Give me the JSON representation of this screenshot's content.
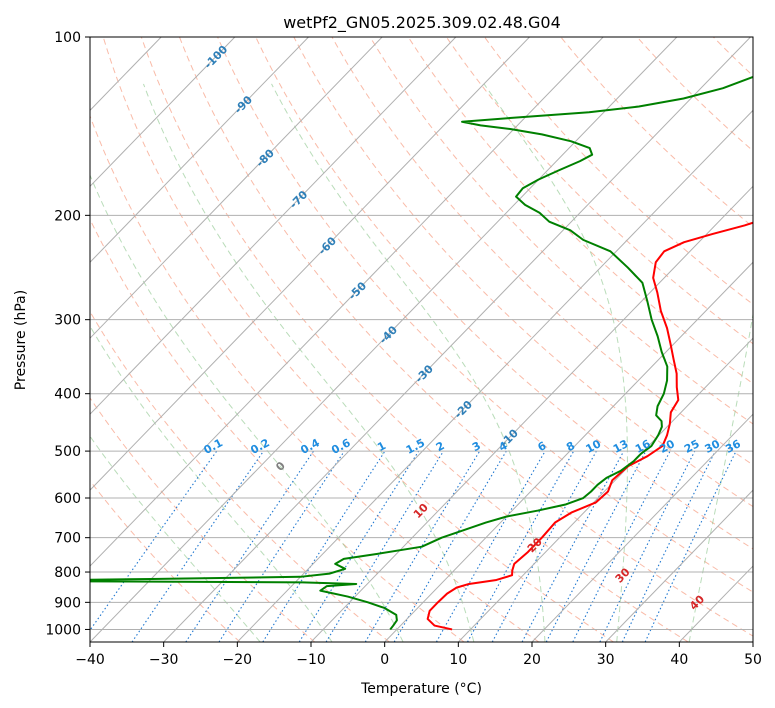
{
  "chart_data": {
    "type": "line",
    "subtype": "skew-t log-p diagram",
    "title": "wetPf2_GN05.2025.309.02.48.G04",
    "xlabel": "Temperature (°C)",
    "ylabel": "Pressure (hPa)",
    "xlim": [
      -40,
      50
    ],
    "ylim_hpa": [
      1050,
      100
    ],
    "x_ticks": [
      -40,
      -30,
      -20,
      -10,
      0,
      10,
      20,
      30,
      40,
      50
    ],
    "x_tick_labels": [
      "−40",
      "−30",
      "−20",
      "−10",
      "0",
      "10",
      "20",
      "30",
      "40",
      "50"
    ],
    "y_ticks": [
      100,
      200,
      300,
      400,
      500,
      600,
      700,
      800,
      900,
      1000
    ],
    "y_tick_labels": [
      "100",
      "200",
      "300",
      "400",
      "500",
      "600",
      "700",
      "800",
      "900",
      "1000"
    ],
    "grid": true,
    "isotherm_spacing_c": 10,
    "dry_adiabat_thetas_k": [
      250,
      260,
      270,
      280,
      290,
      300,
      310,
      320,
      330,
      340,
      350,
      360,
      370,
      380,
      390,
      400,
      420,
      440,
      460
    ],
    "moist_adiabat_start_temps_c": [
      -20,
      -10,
      0,
      10,
      20,
      30,
      40
    ],
    "moist_adiabat_labels": [
      {
        "temp_c": 0,
        "label": "0",
        "color": "#808080",
        "p": 530
      },
      {
        "temp_c": 10,
        "label": "10",
        "color": "#d62728",
        "p": 630
      },
      {
        "temp_c": 20,
        "label": "20",
        "color": "#d62728",
        "p": 720
      },
      {
        "temp_c": 30,
        "label": "30",
        "color": "#d62728",
        "p": 810
      },
      {
        "temp_c": 40,
        "label": "40",
        "color": "#d62728",
        "p": 900
      }
    ],
    "mixing_ratio_lines_gkg": [
      0.1,
      0.2,
      0.4,
      0.6,
      1,
      1.5,
      2,
      3,
      4,
      6,
      8,
      10,
      13,
      16,
      20,
      25,
      30,
      36
    ],
    "mixing_ratio_labels": [
      "0.1",
      "0.2",
      "0.4",
      "0.6",
      "1",
      "1.5",
      "2",
      "3",
      "4",
      "6",
      "8",
      "10",
      "13",
      "16",
      "20",
      "25",
      "30",
      "36"
    ],
    "isotherm_labels": [
      {
        "t": -100,
        "label": "-100",
        "p": 108
      },
      {
        "t": -90,
        "label": "-90",
        "p": 130
      },
      {
        "t": -80,
        "label": "-80",
        "p": 160
      },
      {
        "t": -70,
        "label": "-70",
        "p": 188
      },
      {
        "t": -60,
        "label": "-60",
        "p": 225
      },
      {
        "t": -50,
        "label": "-50",
        "p": 268
      },
      {
        "t": -40,
        "label": "-40",
        "p": 318
      },
      {
        "t": -30,
        "label": "-30",
        "p": 370
      },
      {
        "t": -20,
        "label": "-20",
        "p": 425
      },
      {
        "t": -10,
        "label": "-10",
        "p": 475
      }
    ],
    "series": [
      {
        "name": "Temperature",
        "color": "#ff0000",
        "points": [
          [
            1000,
            7.5
          ],
          [
            985,
            4.6
          ],
          [
            960,
            2.8
          ],
          [
            930,
            2.0
          ],
          [
            900,
            2.0
          ],
          [
            870,
            2.1
          ],
          [
            850,
            2.6
          ],
          [
            838,
            3.8
          ],
          [
            825,
            7.0
          ],
          [
            810,
            8.5
          ],
          [
            795,
            7.9
          ],
          [
            775,
            7.3
          ],
          [
            740,
            7.6
          ],
          [
            700,
            7.6
          ],
          [
            660,
            7.4
          ],
          [
            635,
            8.3
          ],
          [
            610,
            10.3
          ],
          [
            585,
            10.5
          ],
          [
            560,
            9.6
          ],
          [
            530,
            9.9
          ],
          [
            510,
            11.2
          ],
          [
            490,
            11.9
          ],
          [
            470,
            11.1
          ],
          [
            450,
            10.0
          ],
          [
            430,
            8.6
          ],
          [
            410,
            8.0
          ],
          [
            390,
            6.1
          ],
          [
            370,
            4.3
          ],
          [
            350,
            2.0
          ],
          [
            330,
            -0.4
          ],
          [
            310,
            -3.0
          ],
          [
            290,
            -6.1
          ],
          [
            270,
            -9.0
          ],
          [
            255,
            -11.5
          ],
          [
            240,
            -13.2
          ],
          [
            230,
            -13.5
          ],
          [
            222,
            -12.0
          ],
          [
            215,
            -9.2
          ],
          [
            208,
            -6.0
          ],
          [
            201,
            -3.5
          ],
          [
            196,
            -2.8
          ],
          [
            191,
            -2.4
          ],
          [
            185,
            -2.3
          ],
          [
            175,
            -2.5
          ],
          [
            165,
            -3.0
          ],
          [
            155,
            -1.7
          ],
          [
            148,
            0.0
          ],
          [
            140,
            1.2
          ],
          [
            132,
            1.6
          ],
          [
            125,
            3.3
          ],
          [
            120,
            5.0
          ],
          [
            115,
            5.9
          ],
          [
            110,
            7.1
          ],
          [
            105,
            8.5
          ],
          [
            100,
            9.5
          ]
        ]
      },
      {
        "name": "Dewpoint",
        "color": "#008000",
        "points": [
          [
            1000,
            -0.9
          ],
          [
            985,
            -1.0
          ],
          [
            965,
            -1.2
          ],
          [
            945,
            -2.0
          ],
          [
            920,
            -4.5
          ],
          [
            900,
            -7.5
          ],
          [
            880,
            -11.0
          ],
          [
            860,
            -15.5
          ],
          [
            845,
            -15.2
          ],
          [
            838,
            -11.5
          ],
          [
            833,
            -19.0
          ],
          [
            828,
            -60.0
          ],
          [
            822,
            -40.0
          ],
          [
            815,
            -20.0
          ],
          [
            805,
            -16.5
          ],
          [
            790,
            -15.0
          ],
          [
            775,
            -17.0
          ],
          [
            760,
            -16.5
          ],
          [
            745,
            -12.5
          ],
          [
            725,
            -7.5
          ],
          [
            700,
            -6.0
          ],
          [
            680,
            -4.0
          ],
          [
            660,
            -2.0
          ],
          [
            645,
            0.0
          ],
          [
            630,
            3.5
          ],
          [
            615,
            6.5
          ],
          [
            600,
            8.0
          ],
          [
            585,
            8.2
          ],
          [
            570,
            8.2
          ],
          [
            555,
            8.5
          ],
          [
            540,
            9.5
          ],
          [
            520,
            10.0
          ],
          [
            505,
            10.0
          ],
          [
            490,
            10.4
          ],
          [
            470,
            9.9
          ],
          [
            455,
            9.3
          ],
          [
            445,
            8.5
          ],
          [
            435,
            7.0
          ],
          [
            420,
            6.0
          ],
          [
            400,
            5.2
          ],
          [
            380,
            3.9
          ],
          [
            360,
            2.1
          ],
          [
            340,
            -0.6
          ],
          [
            320,
            -3.2
          ],
          [
            300,
            -6.2
          ],
          [
            280,
            -9.1
          ],
          [
            260,
            -12.3
          ],
          [
            245,
            -16.3
          ],
          [
            230,
            -20.8
          ],
          [
            220,
            -26.0
          ],
          [
            212,
            -29.0
          ],
          [
            205,
            -33.0
          ],
          [
            198,
            -35.5
          ],
          [
            192,
            -38.5
          ],
          [
            186,
            -40.8
          ],
          [
            180,
            -41.0
          ],
          [
            174,
            -40.0
          ],
          [
            168,
            -38.5
          ],
          [
            162,
            -36.8
          ],
          [
            158,
            -36.0
          ],
          [
            154,
            -37.2
          ],
          [
            150,
            -40.6
          ],
          [
            146,
            -45.5
          ],
          [
            143,
            -50.5
          ],
          [
            141,
            -55.0
          ],
          [
            139,
            -58.0
          ],
          [
            137,
            -52.0
          ],
          [
            134,
            -42.0
          ],
          [
            131,
            -36.0
          ],
          [
            127,
            -31.0
          ],
          [
            122,
            -27.0
          ],
          [
            115,
            -23.5
          ],
          [
            108,
            -20.5
          ],
          [
            100,
            -18.0
          ]
        ]
      }
    ]
  }
}
